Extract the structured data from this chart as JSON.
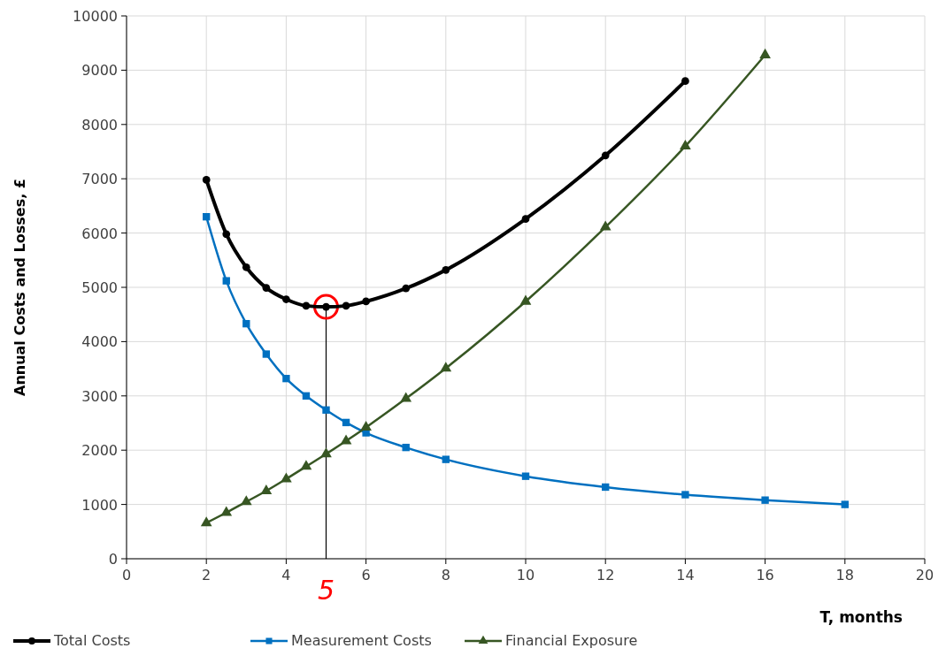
{
  "chart_data": {
    "type": "line",
    "xlabel": "T, months",
    "ylabel": "Annual Costs and Losses, £",
    "xlim": [
      0,
      20
    ],
    "xticks": [
      0,
      2,
      4,
      6,
      8,
      10,
      12,
      14,
      16,
      18,
      20
    ],
    "ylim": [
      0,
      10000
    ],
    "yticks": [
      0,
      1000,
      2000,
      3000,
      4000,
      5000,
      6000,
      7000,
      8000,
      9000,
      10000
    ],
    "grid": true,
    "legend": "bottom left",
    "ref_lines": [
      {
        "axis": "x",
        "value": 5,
        "label": "5",
        "color": "#000000"
      }
    ],
    "series": [
      {
        "name": "Total Costs",
        "color": "#000000",
        "marker": "circle",
        "x": [
          2,
          2.5,
          3,
          3.5,
          4,
          4.5,
          5,
          5.5,
          6,
          7,
          8,
          10,
          12,
          14
        ],
        "values": [
          6980,
          5980,
          5370,
          4990,
          4780,
          4660,
          4640,
          4660,
          4740,
          4980,
          5320,
          6260,
          7430,
          8800
        ]
      },
      {
        "name": "Measurement Costs",
        "color": "#0070c0",
        "marker": "square",
        "x": [
          2,
          2.5,
          3,
          3.5,
          4,
          4.5,
          5,
          5.5,
          6,
          7,
          8,
          10,
          12,
          14,
          16,
          18
        ],
        "values": [
          6300,
          5120,
          4330,
          3770,
          3320,
          3000,
          2740,
          2510,
          2320,
          2050,
          1830,
          1520,
          1320,
          1180,
          1080,
          1000
        ]
      },
      {
        "name": "Financial Exposure",
        "color": "#375623",
        "marker": "triangle",
        "x": [
          2,
          2.5,
          3,
          3.5,
          4,
          4.5,
          5,
          5.5,
          6,
          7,
          8,
          10,
          12,
          14,
          16
        ],
        "values": [
          660,
          850,
          1050,
          1250,
          1470,
          1700,
          1930,
          2170,
          2420,
          2950,
          3510,
          4740,
          6110,
          7600,
          9280
        ]
      }
    ]
  }
}
